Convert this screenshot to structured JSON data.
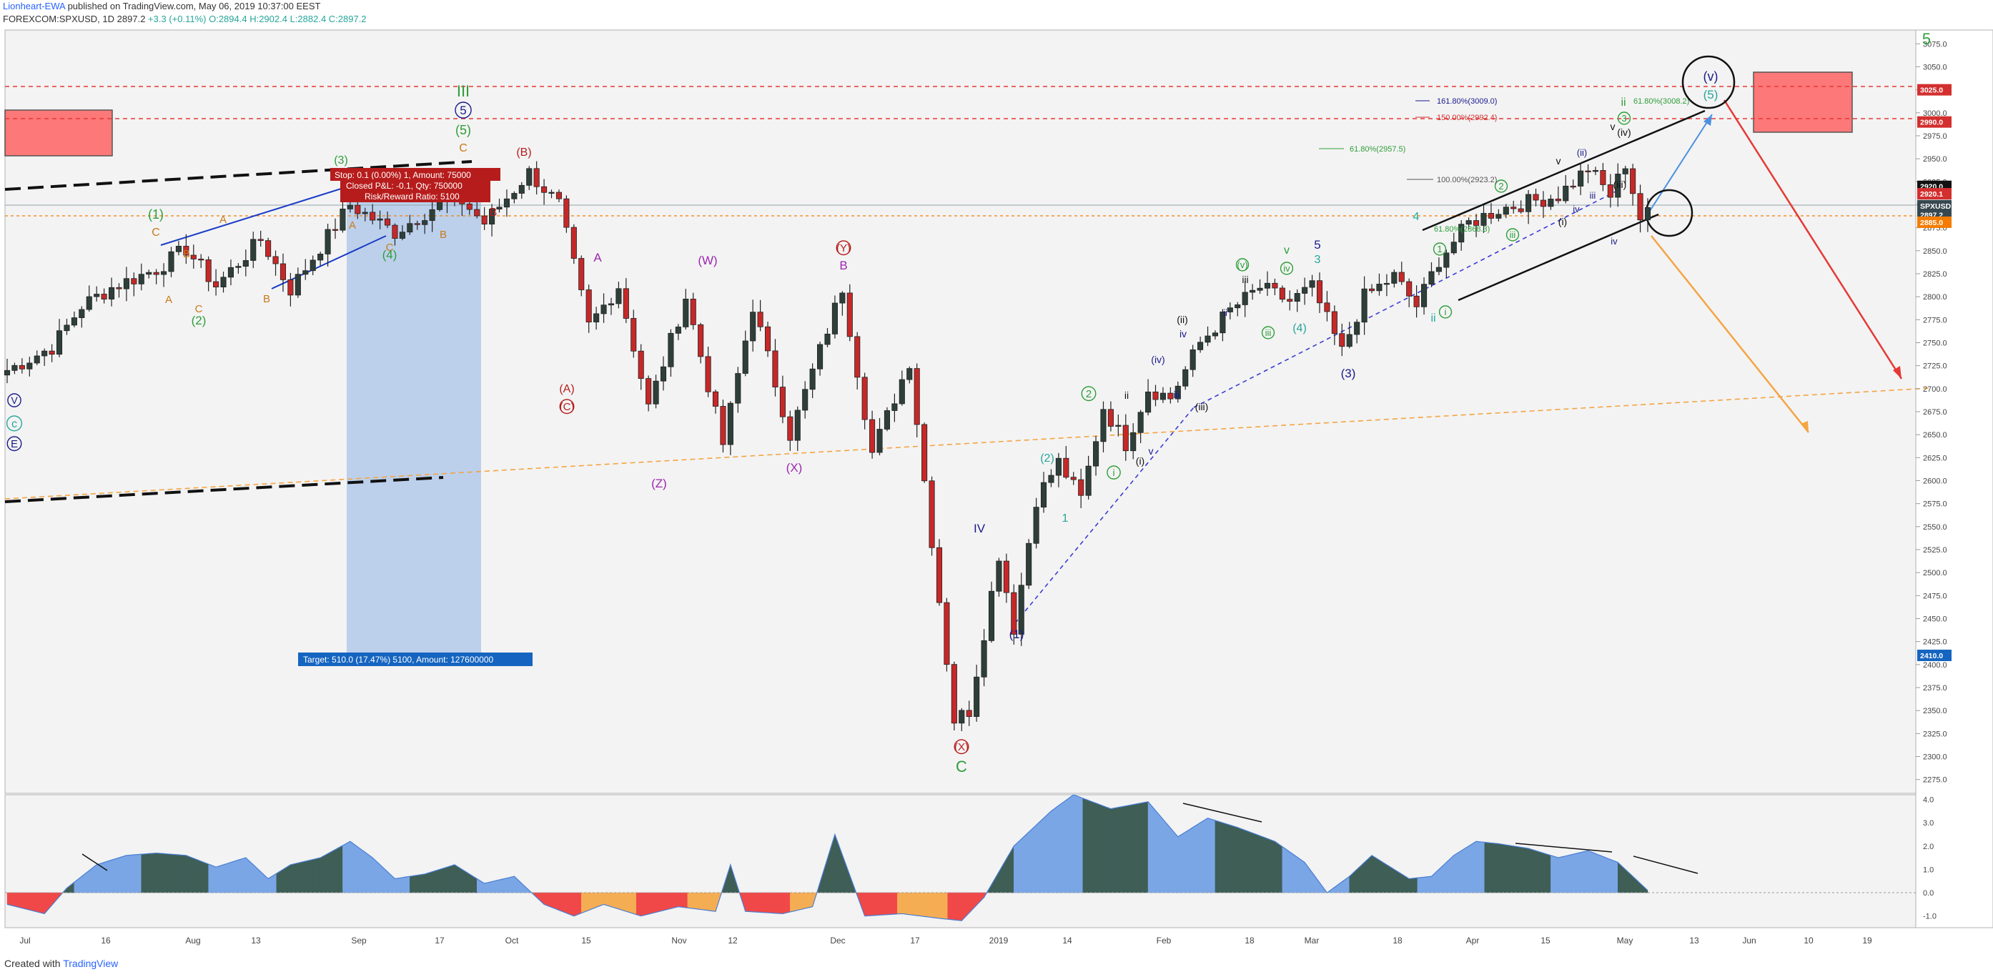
{
  "header": {
    "author": "Lionheart-EWA",
    "published": "published on TradingView.com, May 06, 2019 10:37:00 EEST",
    "symbol": "FOREXCOM:SPXUSD, 1D",
    "last": "2897.2",
    "change": "+3.3 (+0.11%)",
    "ohlc": "O:2894.4 H:2902.4 L:2882.4 C:2897.2"
  },
  "footer": {
    "created_with": "Created with",
    "brand": "TradingView"
  },
  "colors": {
    "up": "#2e3f3a",
    "down": "#c62828",
    "osc_high": "#3e5e56",
    "osc_mid": "#7aa6e6",
    "osc_neg": "#f04848",
    "osc_neg_light": "#f5ad54",
    "target": "#aac4e8",
    "resistance": "#ff6b6b"
  },
  "chart_data": {
    "type": "candlestick",
    "symbol": "FOREXCOM:SPXUSD",
    "timeframe": "1D",
    "y_axis": {
      "range": [
        2260,
        3090
      ],
      "ticks": [
        2275,
        2300,
        2325,
        2350,
        2375,
        2400,
        2425,
        2450,
        2475,
        2500,
        2525,
        2550,
        2575,
        2600,
        2625,
        2650,
        2675,
        2700,
        2725,
        2750,
        2775,
        2800,
        2825,
        2850,
        2875,
        2900,
        2925,
        2950,
        2975,
        3000,
        3025,
        3050,
        3075
      ]
    },
    "x_axis": {
      "labels": [
        "Jul",
        "16",
        "Aug",
        "13",
        "Sep",
        "17",
        "Oct",
        "15",
        "Nov",
        "12",
        "Dec",
        "17",
        "2019",
        "14",
        "Feb",
        "18",
        "Mar",
        "18",
        "Apr",
        "15",
        "May",
        "13",
        "Jun",
        "10",
        "19"
      ]
    },
    "price_tags": [
      {
        "label": "3025.0",
        "value": 3025,
        "color": "#d32f2f"
      },
      {
        "label": "2990.0",
        "value": 2990,
        "color": "#d32f2f"
      },
      {
        "label": "2920.0",
        "value": 2920,
        "color": "#111111"
      },
      {
        "label": "2920.1",
        "value": 2912,
        "color": "#d32f2f"
      },
      {
        "label": "SPXUSD",
        "value": 2899,
        "color": "#37474f"
      },
      {
        "label": "2897.2",
        "value": 2889,
        "color": "#37474f"
      },
      {
        "label": "2885.0",
        "value": 2881,
        "color": "#f57c00"
      },
      {
        "label": "2410.0",
        "value": 2410,
        "color": "#1565c0"
      }
    ],
    "anchors": [
      {
        "t": 0,
        "p": 2720
      },
      {
        "t": 6,
        "p": 2745
      },
      {
        "t": 10,
        "p": 2790
      },
      {
        "t": 14,
        "p": 2810
      },
      {
        "t": 20,
        "p": 2830
      },
      {
        "t": 24,
        "p": 2852
      },
      {
        "t": 28,
        "p": 2812
      },
      {
        "t": 34,
        "p": 2862
      },
      {
        "t": 38,
        "p": 2808
      },
      {
        "t": 46,
        "p": 2900
      },
      {
        "t": 52,
        "p": 2870
      },
      {
        "t": 60,
        "p": 2912
      },
      {
        "t": 64,
        "p": 2880
      },
      {
        "t": 70,
        "p": 2935
      },
      {
        "t": 74,
        "p": 2900
      },
      {
        "t": 78,
        "p": 2768
      },
      {
        "t": 82,
        "p": 2812
      },
      {
        "t": 86,
        "p": 2680
      },
      {
        "t": 91,
        "p": 2800
      },
      {
        "t": 96,
        "p": 2640
      },
      {
        "t": 100,
        "p": 2790
      },
      {
        "t": 105,
        "p": 2650
      },
      {
        "t": 112,
        "p": 2810
      },
      {
        "t": 116,
        "p": 2630
      },
      {
        "t": 121,
        "p": 2730
      },
      {
        "t": 127,
        "p": 2340
      },
      {
        "t": 129,
        "p": 2350
      },
      {
        "t": 133,
        "p": 2520
      },
      {
        "t": 135,
        "p": 2440
      },
      {
        "t": 138,
        "p": 2580
      },
      {
        "t": 141,
        "p": 2620
      },
      {
        "t": 144,
        "p": 2580
      },
      {
        "t": 147,
        "p": 2680
      },
      {
        "t": 150,
        "p": 2640
      },
      {
        "t": 153,
        "p": 2700
      },
      {
        "t": 156,
        "p": 2690
      },
      {
        "t": 160,
        "p": 2750
      },
      {
        "t": 164,
        "p": 2785
      },
      {
        "t": 168,
        "p": 2810
      },
      {
        "t": 172,
        "p": 2795
      },
      {
        "t": 175,
        "p": 2810
      },
      {
        "t": 179,
        "p": 2740
      },
      {
        "t": 182,
        "p": 2800
      },
      {
        "t": 186,
        "p": 2822
      },
      {
        "t": 189,
        "p": 2790
      },
      {
        "t": 192,
        "p": 2840
      },
      {
        "t": 196,
        "p": 2880
      },
      {
        "t": 200,
        "p": 2895
      },
      {
        "t": 204,
        "p": 2903
      },
      {
        "t": 208,
        "p": 2910
      },
      {
        "t": 212,
        "p": 2940
      },
      {
        "t": 215,
        "p": 2910
      },
      {
        "t": 217,
        "p": 2945
      },
      {
        "t": 219,
        "p": 2885
      },
      {
        "t": 220,
        "p": 2897
      }
    ],
    "oscillator": {
      "type": "area",
      "y_ticks": [
        "4.0",
        "3.0",
        "2.0",
        "1.0",
        "0.0",
        "-1.0"
      ],
      "range": [
        -1.5,
        4.2
      ],
      "points": [
        [
          0,
          -0.5
        ],
        [
          5,
          -0.9
        ],
        [
          8,
          0.2
        ],
        [
          12,
          1.2
        ],
        [
          16,
          1.6
        ],
        [
          20,
          1.7
        ],
        [
          24,
          1.6
        ],
        [
          28,
          1.1
        ],
        [
          32,
          1.5
        ],
        [
          35,
          0.6
        ],
        [
          38,
          1.2
        ],
        [
          42,
          1.5
        ],
        [
          46,
          2.2
        ],
        [
          49,
          1.5
        ],
        [
          52,
          0.6
        ],
        [
          56,
          0.8
        ],
        [
          60,
          1.2
        ],
        [
          64,
          0.4
        ],
        [
          68,
          0.7
        ],
        [
          72,
          -0.5
        ],
        [
          76,
          -1.0
        ],
        [
          80,
          -0.5
        ],
        [
          85,
          -1.0
        ],
        [
          90,
          -0.6
        ],
        [
          95,
          -0.8
        ],
        [
          97,
          1.2
        ],
        [
          99,
          -0.8
        ],
        [
          104,
          -0.9
        ],
        [
          108,
          -0.6
        ],
        [
          111,
          2.5
        ],
        [
          115,
          -1.0
        ],
        [
          120,
          -0.9
        ],
        [
          125,
          -1.1
        ],
        [
          128,
          -1.2
        ],
        [
          131,
          -0.2
        ],
        [
          135,
          2.0
        ],
        [
          140,
          3.5
        ],
        [
          143,
          4.2
        ],
        [
          148,
          3.6
        ],
        [
          153,
          3.9
        ],
        [
          157,
          2.4
        ],
        [
          161,
          3.2
        ],
        [
          165,
          2.8
        ],
        [
          170,
          2.2
        ],
        [
          174,
          1.3
        ],
        [
          177,
          0.0
        ],
        [
          180,
          0.7
        ],
        [
          183,
          1.6
        ],
        [
          188,
          0.6
        ],
        [
          191,
          0.7
        ],
        [
          194,
          1.6
        ],
        [
          197,
          2.2
        ],
        [
          200,
          2.1
        ],
        [
          204,
          1.9
        ],
        [
          208,
          1.5
        ],
        [
          212,
          1.8
        ],
        [
          216,
          1.3
        ],
        [
          220,
          0.1
        ]
      ]
    },
    "wave_labels": [
      "III",
      "5",
      "(5)",
      "C",
      "(B)",
      "(3)",
      "(1)",
      "C",
      "A",
      "B",
      "A",
      "C",
      "(2)",
      "B",
      "B",
      "A",
      "C",
      "(4)",
      "B",
      "(A)",
      "(C)",
      "A",
      "(W)",
      "(Y)",
      "B",
      "(Z)",
      "(X)",
      "(X)",
      "C",
      "IV",
      "(1)",
      "(2)",
      "1",
      "2",
      "i",
      "ii",
      "(i)",
      "(ii)",
      "(iii)",
      "(iv)",
      "iii",
      "iv",
      "v",
      "ii",
      "iii",
      "(v)",
      "iii",
      "iv",
      "v",
      "3",
      "5",
      "(3)",
      "(4)",
      "4",
      "1",
      "i",
      "ii",
      "2",
      "iii",
      "iv",
      "v",
      "(i)",
      "(ii)",
      "iii",
      "iv",
      "ii",
      "3",
      "v",
      "(iii)",
      "(iv)",
      "(v)",
      "(5)",
      "5",
      "V",
      "c",
      "E",
      "4"
    ],
    "fib_labels": [
      "161.80%(3009.0)",
      "150.00%(2992.4)",
      "61.80%(2957.5)",
      "100.00%(2923.2)",
      "61.80%(3008.2)",
      "61.80%(2868.3)"
    ],
    "trade_box": {
      "stop": "Stop: 0.1 (0.00%) 1, Amount: 75000",
      "closed": "Closed P&L: -0.1, Qty: 750000",
      "ratio": "Risk/Reward Ratio: 5100",
      "target": "Target: 510.0 (17.47%) 5100, Amount: 127600000"
    }
  }
}
